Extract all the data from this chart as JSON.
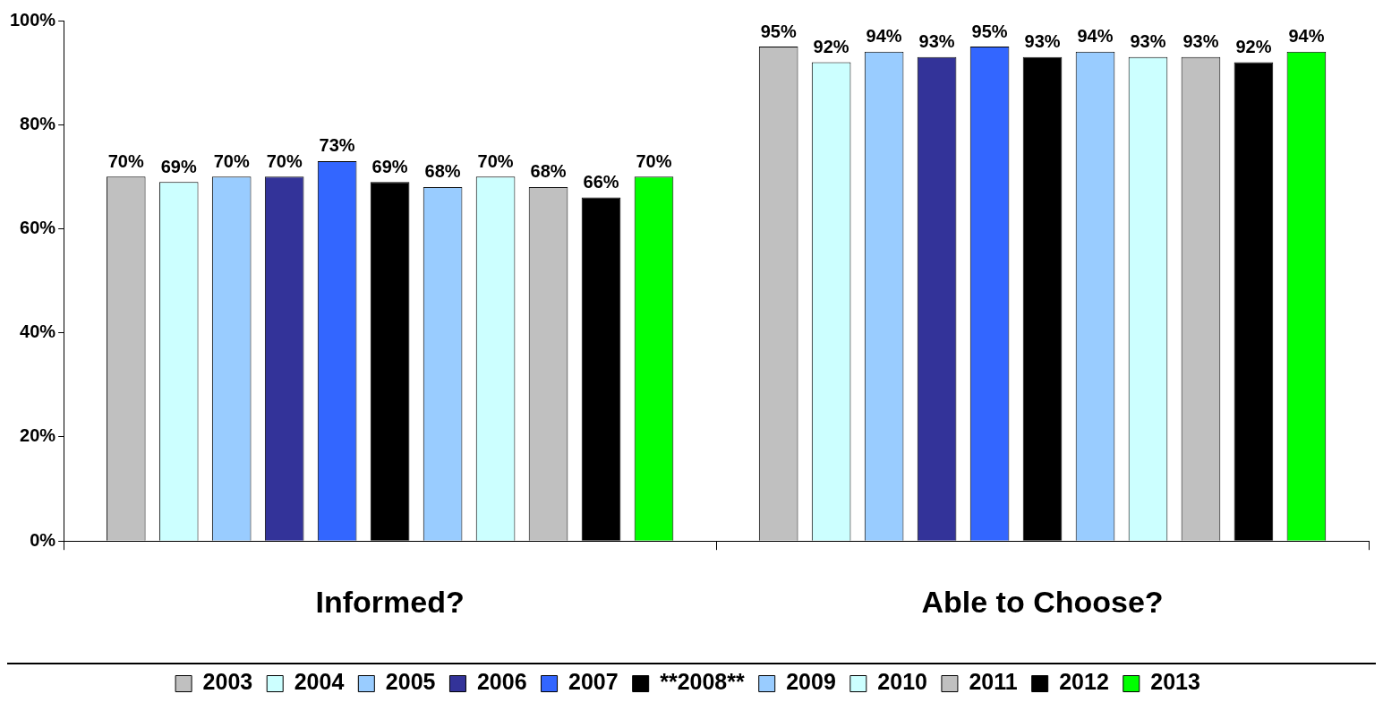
{
  "chart_data": {
    "type": "bar",
    "categories": [
      "Informed?",
      "Able to Choose?"
    ],
    "series": [
      {
        "name": "2003",
        "color": "#c0c0c0",
        "values": [
          70,
          95
        ],
        "value_labels": [
          "70%",
          "95%"
        ]
      },
      {
        "name": "2004",
        "color": "#ccffff",
        "values": [
          69,
          92
        ],
        "value_labels": [
          "69%",
          "92%"
        ]
      },
      {
        "name": "2005",
        "color": "#99ccff",
        "values": [
          70,
          94
        ],
        "value_labels": [
          "70%",
          "94%"
        ]
      },
      {
        "name": "2006",
        "color": "#333399",
        "values": [
          70,
          93
        ],
        "value_labels": [
          "70%",
          "93%"
        ]
      },
      {
        "name": "2007",
        "color": "#3366ff",
        "values": [
          73,
          95
        ],
        "value_labels": [
          "73%",
          "95%"
        ]
      },
      {
        "name": "**2008**",
        "color": "#000000",
        "values": [
          69,
          93
        ],
        "value_labels": [
          "69%",
          "93%"
        ]
      },
      {
        "name": "2009",
        "color": "#99ccff",
        "values": [
          68,
          94
        ],
        "value_labels": [
          "68%",
          "94%"
        ]
      },
      {
        "name": "2010",
        "color": "#ccffff",
        "values": [
          70,
          93
        ],
        "value_labels": [
          "70%",
          "93%"
        ]
      },
      {
        "name": "2011",
        "color": "#c0c0c0",
        "values": [
          68,
          93
        ],
        "value_labels": [
          "68%",
          "93%"
        ]
      },
      {
        "name": "2012",
        "color": "#000000",
        "values": [
          66,
          92
        ],
        "value_labels": [
          "66%",
          "92%"
        ]
      },
      {
        "name": "2013",
        "color": "#00ff00",
        "values": [
          70,
          94
        ],
        "value_labels": [
          "70%",
          "94%"
        ]
      }
    ],
    "ylim": [
      0,
      100
    ],
    "yticks": [
      {
        "value": 0,
        "label": "0%"
      },
      {
        "value": 20,
        "label": "20%"
      },
      {
        "value": 40,
        "label": "40%"
      },
      {
        "value": 60,
        "label": "60%"
      },
      {
        "value": 80,
        "label": "80%"
      },
      {
        "value": 100,
        "label": "100%"
      }
    ],
    "grid": false,
    "legend": "bottom"
  }
}
